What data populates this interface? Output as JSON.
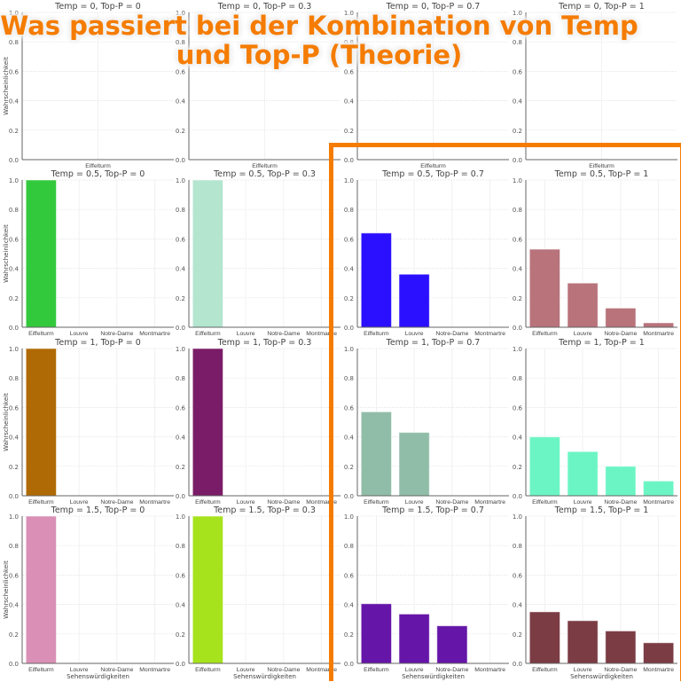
{
  "headline": {
    "line1": "Was passiert bei der Kombination von Temp",
    "line2": "und Top-P (Theorie)",
    "color": "#f57c00"
  },
  "chart_data": [
    {
      "type": "bar",
      "title": "Temp = 0, Top-P = 0",
      "categories": [
        "Eiffelturm"
      ],
      "values": [
        null
      ],
      "color": "#1f77b4",
      "ylabel": "Wahrscheinlichkeit",
      "xlabel": "",
      "ylim": [
        0,
        1
      ],
      "grid": true
    },
    {
      "type": "bar",
      "title": "Temp = 0, Top-P = 0.3",
      "categories": [
        "Eiffelturm"
      ],
      "values": [
        null
      ],
      "color": "#1f77b4",
      "ylabel": "",
      "xlabel": "",
      "ylim": [
        0,
        1
      ],
      "grid": true
    },
    {
      "type": "bar",
      "title": "Temp = 0, Top-P = 0.7",
      "categories": [
        "Eiffelturm"
      ],
      "values": [
        null
      ],
      "color": "#1f77b4",
      "ylabel": "",
      "xlabel": "",
      "ylim": [
        0,
        1
      ],
      "grid": true
    },
    {
      "type": "bar",
      "title": "Temp = 0, Top-P = 1",
      "categories": [
        "Eiffelturm"
      ],
      "values": [
        null
      ],
      "color": "#1f77b4",
      "ylabel": "",
      "xlabel": "",
      "ylim": [
        0,
        1
      ],
      "grid": true
    },
    {
      "type": "bar",
      "title": "Temp = 0.5, Top-P = 0",
      "categories": [
        "Eiffelturm",
        "Louvre",
        "Notre-Dame",
        "Montmartre"
      ],
      "values": [
        1.0,
        0,
        0,
        0
      ],
      "color": "#33c93d",
      "ylabel": "Wahrscheinlichkeit",
      "xlabel": "",
      "ylim": [
        0,
        1
      ],
      "grid": true
    },
    {
      "type": "bar",
      "title": "Temp = 0.5, Top-P = 0.3",
      "categories": [
        "Eiffelturm",
        "Louvre",
        "Notre-Dame",
        "Montmartre"
      ],
      "values": [
        1.0,
        0,
        0,
        0
      ],
      "color": "#b3e5cf",
      "ylabel": "",
      "xlabel": "",
      "ylim": [
        0,
        1
      ],
      "grid": true
    },
    {
      "type": "bar",
      "title": "Temp = 0.5, Top-P = 0.7",
      "categories": [
        "Eiffelturm",
        "Louvre",
        "Notre-Dame",
        "Montmartre"
      ],
      "values": [
        0.64,
        0.36,
        0,
        0
      ],
      "color": "#2a10ff",
      "ylabel": "",
      "xlabel": "",
      "ylim": [
        0,
        1
      ],
      "grid": true
    },
    {
      "type": "bar",
      "title": "Temp = 0.5, Top-P = 1",
      "categories": [
        "Eiffelturm",
        "Louvre",
        "Notre-Dame",
        "Montmartre"
      ],
      "values": [
        0.53,
        0.3,
        0.13,
        0.03
      ],
      "color": "#b8737b",
      "ylabel": "",
      "xlabel": "",
      "ylim": [
        0,
        1
      ],
      "grid": true
    },
    {
      "type": "bar",
      "title": "Temp = 1, Top-P = 0",
      "categories": [
        "Eiffelturm",
        "Louvre",
        "Notre-Dame",
        "Montmartre"
      ],
      "values": [
        1.0,
        0,
        0,
        0
      ],
      "color": "#b06a05",
      "ylabel": "Wahrscheinlichkeit",
      "xlabel": "",
      "ylim": [
        0,
        1
      ],
      "grid": true
    },
    {
      "type": "bar",
      "title": "Temp = 1, Top-P = 0.3",
      "categories": [
        "Eiffelturm",
        "Louvre",
        "Notre-Dame",
        "Montmartre"
      ],
      "values": [
        1.0,
        0,
        0,
        0
      ],
      "color": "#7a1c68",
      "ylabel": "",
      "xlabel": "",
      "ylim": [
        0,
        1
      ],
      "grid": true
    },
    {
      "type": "bar",
      "title": "Temp = 1, Top-P = 0.7",
      "categories": [
        "Eiffelturm",
        "Louvre",
        "Notre-Dame",
        "Montmartre"
      ],
      "values": [
        0.57,
        0.43,
        0,
        0
      ],
      "color": "#90bda8",
      "ylabel": "",
      "xlabel": "",
      "ylim": [
        0,
        1
      ],
      "grid": true
    },
    {
      "type": "bar",
      "title": "Temp = 1, Top-P = 1",
      "categories": [
        "Eiffelturm",
        "Louvre",
        "Notre-Dame",
        "Montmartre"
      ],
      "values": [
        0.4,
        0.3,
        0.2,
        0.1
      ],
      "color": "#6cf5c4",
      "ylabel": "",
      "xlabel": "",
      "ylim": [
        0,
        1
      ],
      "grid": true
    },
    {
      "type": "bar",
      "title": "Temp = 1.5, Top-P = 0",
      "categories": [
        "Eiffelturm",
        "Louvre",
        "Notre-Dame",
        "Montmartre"
      ],
      "values": [
        1.0,
        0,
        0,
        0
      ],
      "color": "#d98fb6",
      "ylabel": "Wahrscheinlichkeit",
      "xlabel": "Sehenswürdigkeiten",
      "ylim": [
        0,
        1
      ],
      "grid": true
    },
    {
      "type": "bar",
      "title": "Temp = 1.5, Top-P = 0.3",
      "categories": [
        "Eiffelturm",
        "Louvre",
        "Notre-Dame",
        "Montmartre"
      ],
      "values": [
        1.0,
        0,
        0,
        0
      ],
      "color": "#a6e31c",
      "ylabel": "",
      "xlabel": "Sehenswürdigkeiten",
      "ylim": [
        0,
        1
      ],
      "grid": true
    },
    {
      "type": "bar",
      "title": "Temp = 1.5, Top-P = 0.7",
      "categories": [
        "Eiffelturm",
        "Louvre",
        "Notre-Dame",
        "Montmartre"
      ],
      "values": [
        0.405,
        0.335,
        0.255,
        0
      ],
      "color": "#6515a8",
      "ylabel": "",
      "xlabel": "Sehenswürdigkeiten",
      "ylim": [
        0,
        1
      ],
      "grid": true
    },
    {
      "type": "bar",
      "title": "Temp = 1.5, Top-P = 1",
      "categories": [
        "Eiffelturm",
        "Louvre",
        "Notre-Dame",
        "Montmartre"
      ],
      "values": [
        0.35,
        0.29,
        0.22,
        0.14
      ],
      "color": "#7b3c44",
      "ylabel": "",
      "xlabel": "Sehenswürdigkeiten",
      "ylim": [
        0,
        1
      ],
      "grid": true
    }
  ],
  "yticks": [
    "0.0",
    "0.2",
    "0.4",
    "0.6",
    "0.8",
    "1.0"
  ]
}
